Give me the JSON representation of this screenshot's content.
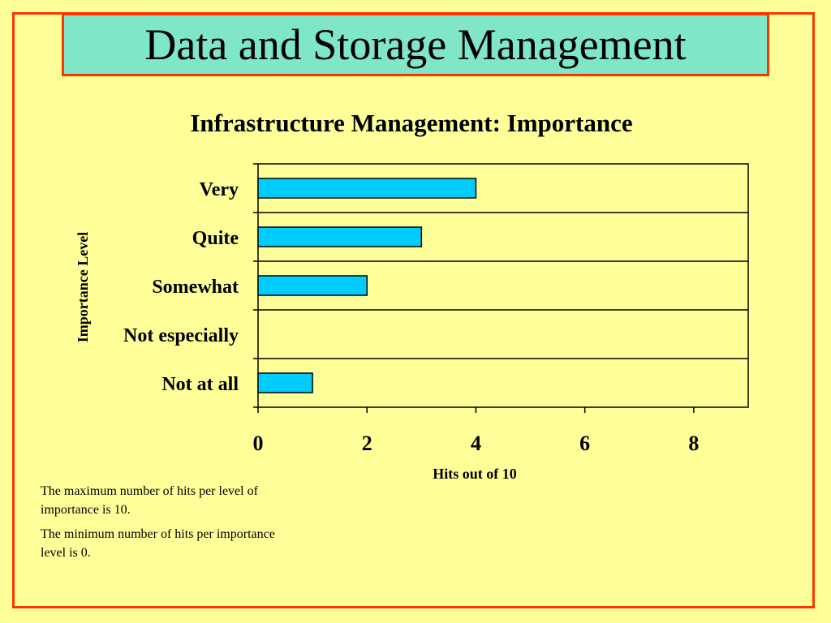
{
  "slide": {
    "title": "Data and Storage Management"
  },
  "notes": [
    "The maximum number of hits per level of importance is 10.",
    "The minimum number of hits per importance level is 0."
  ],
  "colors": {
    "background": "#ffff99",
    "frame": "#ff3300",
    "title_fill": "#80e6c8",
    "bar_fill": "#00ccff"
  },
  "chart_data": {
    "type": "bar",
    "orientation": "horizontal",
    "title": "Infrastructure Management: Importance",
    "xlabel": "Hits out of 10",
    "ylabel": "Importance Level",
    "categories": [
      "Very",
      "Quite",
      "Somewhat",
      "Not especially",
      "Not at all"
    ],
    "values": [
      4,
      3,
      2,
      0,
      1
    ],
    "xlim": [
      0,
      9
    ],
    "xticks": [
      0,
      2,
      4,
      6,
      8
    ],
    "grid": "horizontal",
    "legend": "none"
  }
}
